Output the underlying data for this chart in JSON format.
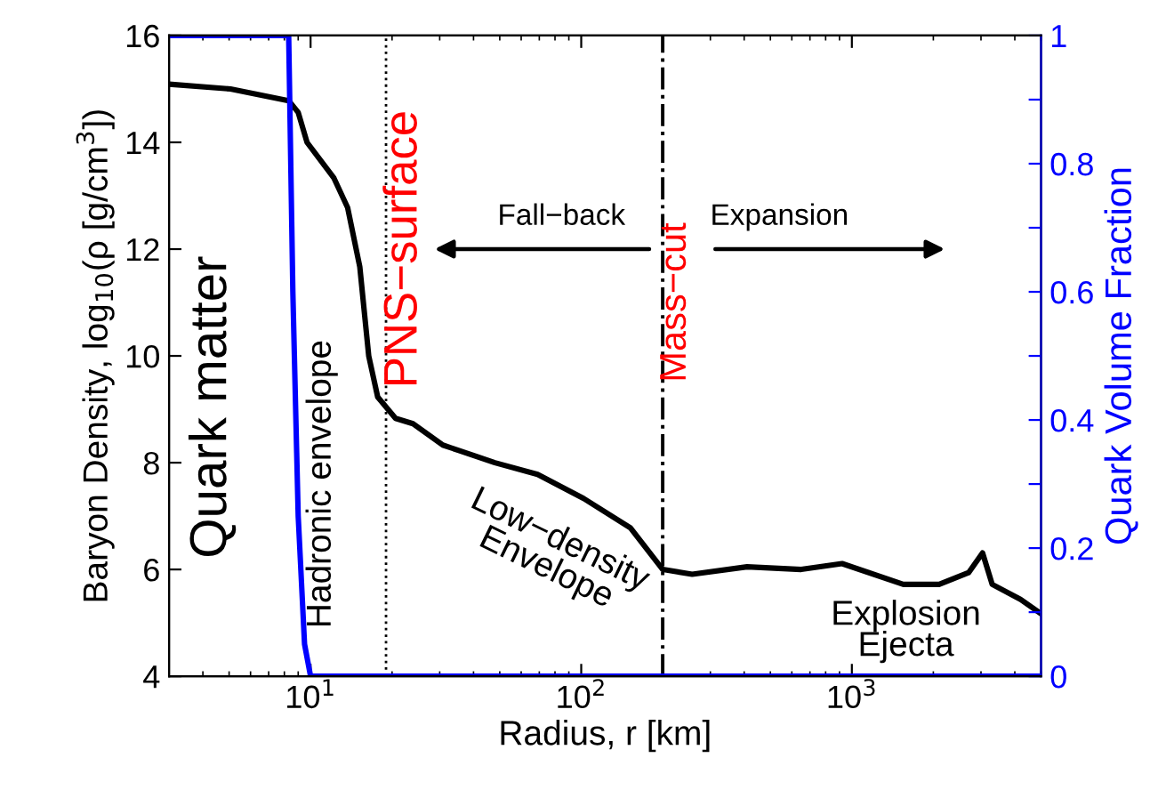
{
  "chart_data": {
    "type": "line",
    "xlabel": "Radius, r [km]",
    "ylabel": "Baryon Density, log$_{10}$(ρ [g/cm$^{3}$])",
    "y2label": "Quark Volume Fraction",
    "log": "x",
    "xlim": [
      3,
      5000
    ],
    "xticks": [
      {
        "value": 10,
        "label": "10$^{1}$"
      },
      {
        "value": 100,
        "label": "10$^{2}$"
      },
      {
        "value": 1000,
        "label": "10$^{3}$"
      }
    ],
    "ylim": [
      4,
      16
    ],
    "yticks": [
      4,
      6,
      8,
      10,
      12,
      14,
      16
    ],
    "y2lim": [
      0,
      1
    ],
    "y2ticks": [
      0,
      {
        "value": 0.1,
        "label": null
      },
      0.2,
      {
        "value": 0.3,
        "label": null
      },
      0.4,
      {
        "value": 0.5,
        "label": null
      },
      0.6,
      {
        "value": 0.7,
        "label": null
      },
      0.8,
      {
        "value": 0.9,
        "label": null
      },
      1
    ],
    "grid": false,
    "legend": false,
    "line_style": "solid",
    "marker": "none",
    "series": [
      {
        "color": "#000000",
        "x": [
          3,
          5.06,
          8.3,
          9.0,
          9.7,
          12.2,
          13.7,
          15.2,
          16.4,
          17.7,
          20.6,
          23.9,
          30.8,
          48,
          69,
          102,
          152,
          200,
          257,
          410,
          650,
          920,
          1550,
          2100,
          2700,
          3040,
          3300,
          4200,
          5000
        ],
        "values": [
          15.09,
          15.0,
          14.78,
          14.56,
          14.0,
          13.33,
          12.78,
          11.67,
          10.0,
          9.23,
          8.83,
          8.73,
          8.33,
          8.0,
          7.78,
          7.33,
          6.78,
          6.0,
          5.91,
          6.05,
          6.0,
          6.11,
          5.72,
          5.72,
          5.94,
          6.31,
          5.72,
          5.44,
          5.17
        ]
      },
      {
        "color": "#0000ff",
        "axis": "y2",
        "x": [
          3,
          8.3,
          8.6,
          9.0,
          9.5,
          10,
          5000
        ],
        "values": [
          1,
          1,
          0.6,
          0.25,
          0.05,
          0,
          0
        ]
      }
    ],
    "ref_lines": [
      {
        "axis": "x",
        "value": 19,
        "label": "PNS−surface",
        "color": "#000000",
        "line_style": "dotted"
      },
      {
        "axis": "x",
        "value": 200,
        "label": "Mass−cut",
        "color": "#000000",
        "line_style": "dashdot"
      }
    ],
    "annotations": [
      "Quark matter",
      "Hadronic envelope",
      "Low−density\nEnvelope",
      "Explosion\nEjecta",
      "Fall−back",
      "Expansion"
    ]
  }
}
